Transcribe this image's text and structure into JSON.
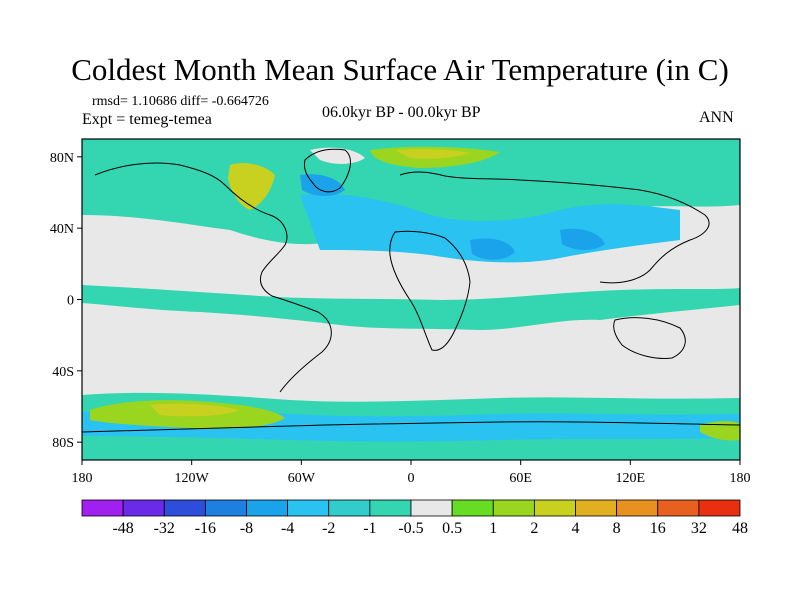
{
  "title": "Coldest Month Mean Surface Air Temperature (in C)",
  "stats": "rmsd= 1.10686 diff= -0.664726",
  "experiment": "Expt = temeg-temea",
  "period": "06.0kyr BP - 00.0kyr BP",
  "season": "ANN",
  "axes": {
    "lat_ticks": [
      {
        "label": "80N",
        "lat": 80
      },
      {
        "label": "40N",
        "lat": 40
      },
      {
        "label": "0",
        "lat": 0
      },
      {
        "label": "40S",
        "lat": -40
      },
      {
        "label": "80S",
        "lat": -80
      }
    ],
    "lon_ticks": [
      {
        "label": "180",
        "lon": -180
      },
      {
        "label": "120W",
        "lon": -120
      },
      {
        "label": "60W",
        "lon": -60
      },
      {
        "label": "0",
        "lon": 0
      },
      {
        "label": "60E",
        "lon": 60
      },
      {
        "label": "120E",
        "lon": 120
      },
      {
        "label": "180",
        "lon": 180
      }
    ]
  },
  "colorbar": {
    "labels": [
      "-48",
      "-32",
      "-16",
      "-8",
      "-4",
      "-2",
      "-1",
      "-0.5",
      "0.5",
      "1",
      "2",
      "4",
      "8",
      "16",
      "32",
      "48"
    ],
    "colors": [
      "#a020f0",
      "#6a2ae8",
      "#2f4ddb",
      "#1d7fe0",
      "#1aa3ea",
      "#2ac2f0",
      "#33cccc",
      "#33d6b0",
      "#e8e8e8",
      "#66dd22",
      "#9ad620",
      "#c8d020",
      "#e0b020",
      "#e89020",
      "#e86020",
      "#e83010"
    ]
  },
  "map_colors": {
    "ocean_neutral": "#e8e8e8",
    "cool_light": "#33d6b0",
    "cool_mid": "#2ac2f0",
    "cool_strong": "#1aa3ea",
    "warm_light": "#9ad620",
    "warm_mid": "#c8d020"
  }
}
